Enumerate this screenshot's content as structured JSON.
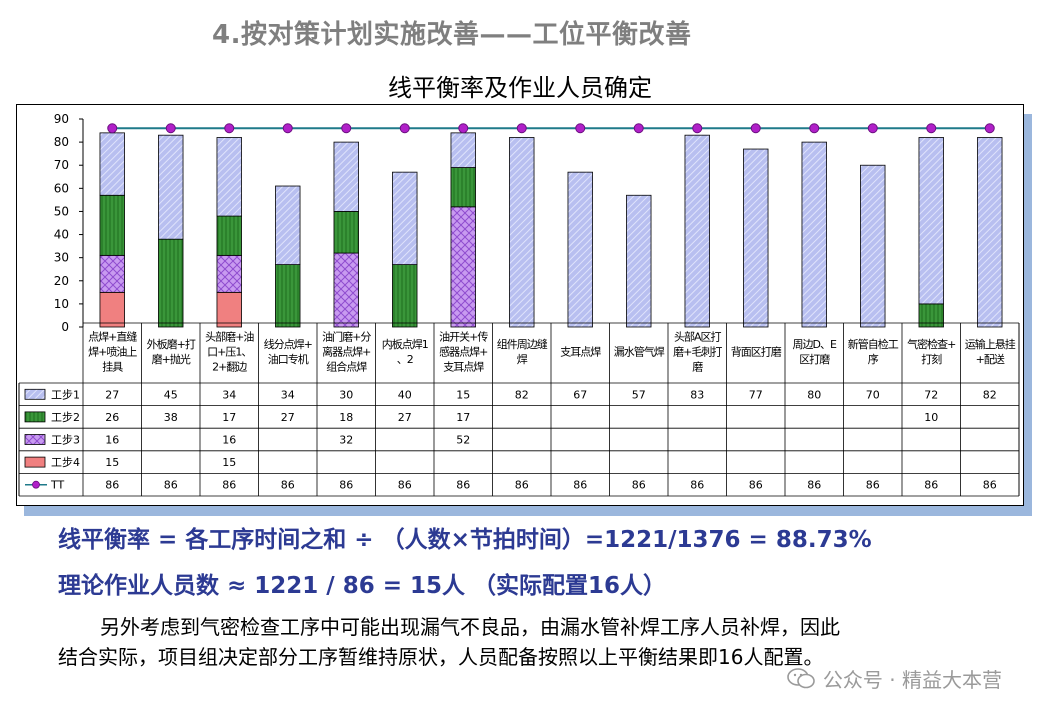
{
  "page_heading": "4.按对策计划实施改善——工位平衡改善",
  "formula": {
    "line1": "线平衡率  = 各工序时间之和 ÷ （人数×节拍时间）=1221/1376 = 88.73%",
    "line2": "理论作业人员数 ≈ 1221 / 86 = 15人  （实际配置16人）"
  },
  "note": {
    "line1": "另外考虑到气密检查工序中可能出现漏气不良品，由漏水管补焊工序人员补焊，因此",
    "line2": "结合实际，项目组决定部分工序暂维持原状，人员配备按照以上平衡结果即16人配置。"
  },
  "watermark": {
    "text": "公众号 · 精益大本营",
    "icon": "wechat-icon"
  },
  "chart_data": {
    "type": "bar",
    "stacked": true,
    "title": "线平衡率及作业人员确定",
    "ylim": [
      0,
      90
    ],
    "yticks": [
      0,
      10,
      20,
      30,
      40,
      50,
      60,
      70,
      80,
      90
    ],
    "grid": false,
    "legend": "table-left",
    "categories": [
      "点焊+直缝焊+喷油上挂具",
      "外板磨+打磨+抛光",
      "头部磨+油口+压1、2+翻边",
      "线分点焊+油口专机",
      "油门磨+分离器点焊+组合点焊",
      "内板点焊1、2",
      "油开关+传感器点焊+支耳点焊",
      "组件周边缝焊",
      "支耳点焊",
      "漏水管气焊",
      "头部A区打磨+毛刺打磨",
      "背面区打磨",
      "周边D、E区打磨",
      "新管自检工序",
      "气密检查+打刻",
      "运输上悬挂+配送"
    ],
    "series": [
      {
        "name": "工步1",
        "color": "#b8bff0",
        "values": [
          27,
          45,
          34,
          34,
          30,
          40,
          15,
          82,
          67,
          57,
          83,
          77,
          80,
          70,
          72,
          82
        ]
      },
      {
        "name": "工步2",
        "color": "#3f9a3f",
        "values": [
          26,
          38,
          17,
          27,
          18,
          27,
          17,
          null,
          null,
          null,
          null,
          null,
          null,
          null,
          10,
          null
        ]
      },
      {
        "name": "工步3",
        "color": "#c89af0",
        "values": [
          16,
          null,
          16,
          null,
          32,
          null,
          52,
          null,
          null,
          null,
          null,
          null,
          null,
          null,
          null,
          null
        ]
      },
      {
        "name": "工步4",
        "color": "#f08080",
        "values": [
          15,
          null,
          15,
          null,
          null,
          null,
          null,
          null,
          null,
          null,
          null,
          null,
          null,
          null,
          null,
          null
        ]
      }
    ],
    "line": {
      "name": "TT",
      "color": "#8a1f9e",
      "values": [
        86,
        86,
        86,
        86,
        86,
        86,
        86,
        86,
        86,
        86,
        86,
        86,
        86,
        86,
        86,
        86
      ]
    }
  }
}
